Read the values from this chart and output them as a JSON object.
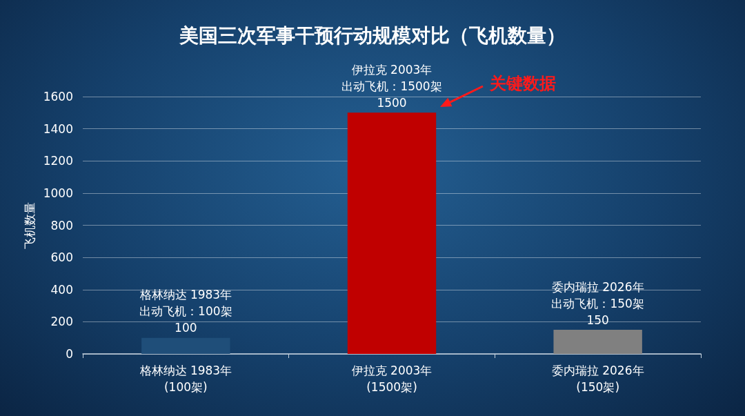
{
  "chart_data": {
    "type": "bar",
    "title": "美国三次军事干预行动规模对比（飞机数量）",
    "ylabel": "飞机数量",
    "categories": [
      "格林纳达 1983年\n(100架)",
      "伊拉克 2003年\n(1500架)",
      "委内瑞拉 2026年\n(150架)"
    ],
    "values": [
      100,
      1500,
      150
    ],
    "colors": [
      "#1f4e79",
      "#c00000",
      "#808080"
    ],
    "ylim": [
      0,
      1600
    ],
    "yticks": [
      0,
      200,
      400,
      600,
      800,
      1000,
      1200,
      1400,
      1600
    ],
    "grid": "y",
    "data_labels": true,
    "annotations": [
      "格林纳达 1983年",
      {
        "text": "出动飞机：100架",
        "x": "格林纳达 1983年\n(100架)",
        "y": 100
      },
      "伊拉克 2003年",
      {
        "text": "出动飞机：1500架",
        "x": "伊拉克 2003年\n(1500架)",
        "y": 1500
      },
      "委内瑞拉 2026年",
      {
        "text": "出动飞机：150架",
        "x": "委内瑞拉 2026年\n(150架)",
        "y": 150
      },
      "关键数据"
    ]
  }
}
